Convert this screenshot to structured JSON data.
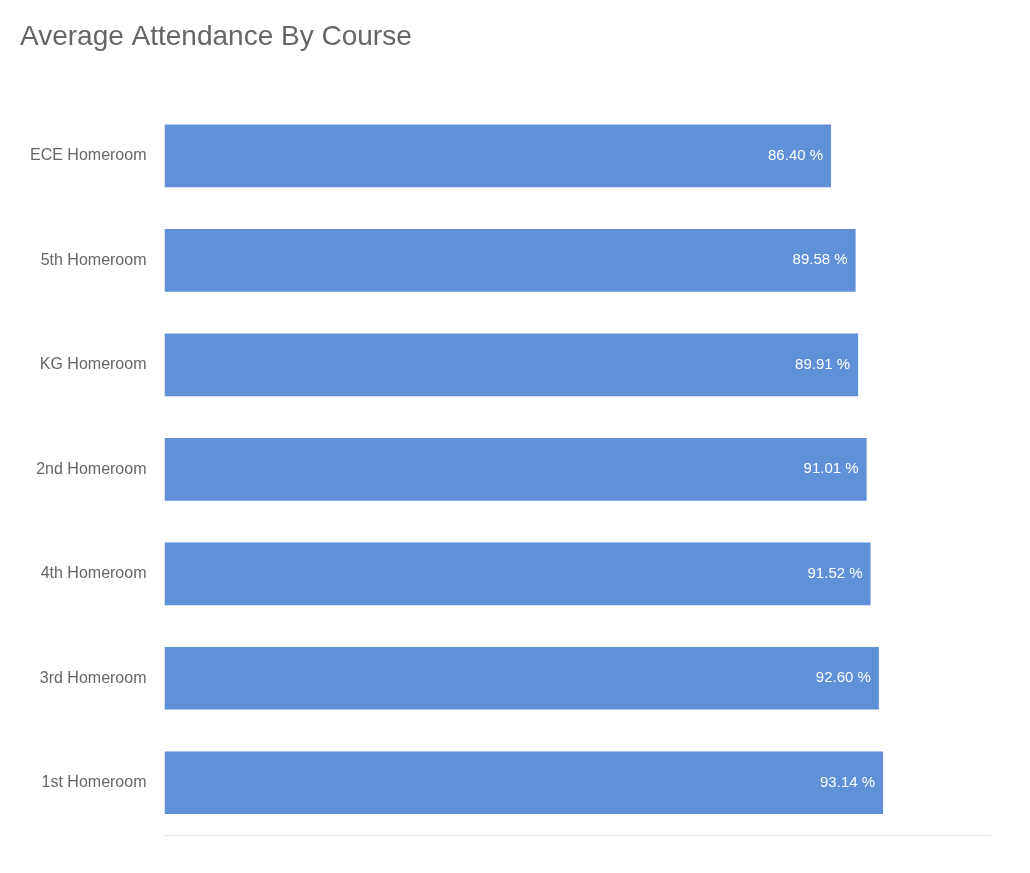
{
  "chart_data": {
    "type": "bar",
    "orientation": "horizontal",
    "title": "Average Attendance By Course",
    "categories": [
      "ECE Homeroom",
      "5th Homeroom",
      "KG Homeroom",
      "2nd Homeroom",
      "4th Homeroom",
      "3rd Homeroom",
      "1st Homeroom"
    ],
    "values": [
      86.4,
      89.58,
      89.91,
      91.01,
      91.52,
      92.6,
      93.14
    ],
    "value_labels": [
      "86.40 %",
      "89.58 %",
      "89.91 %",
      "91.01 %",
      "91.52 %",
      "92.60 %",
      "93.14 %"
    ],
    "data_labels": true,
    "color": "#6090D8",
    "xlim": [
      0,
      107
    ],
    "grid": false,
    "tick_labels": "y"
  }
}
